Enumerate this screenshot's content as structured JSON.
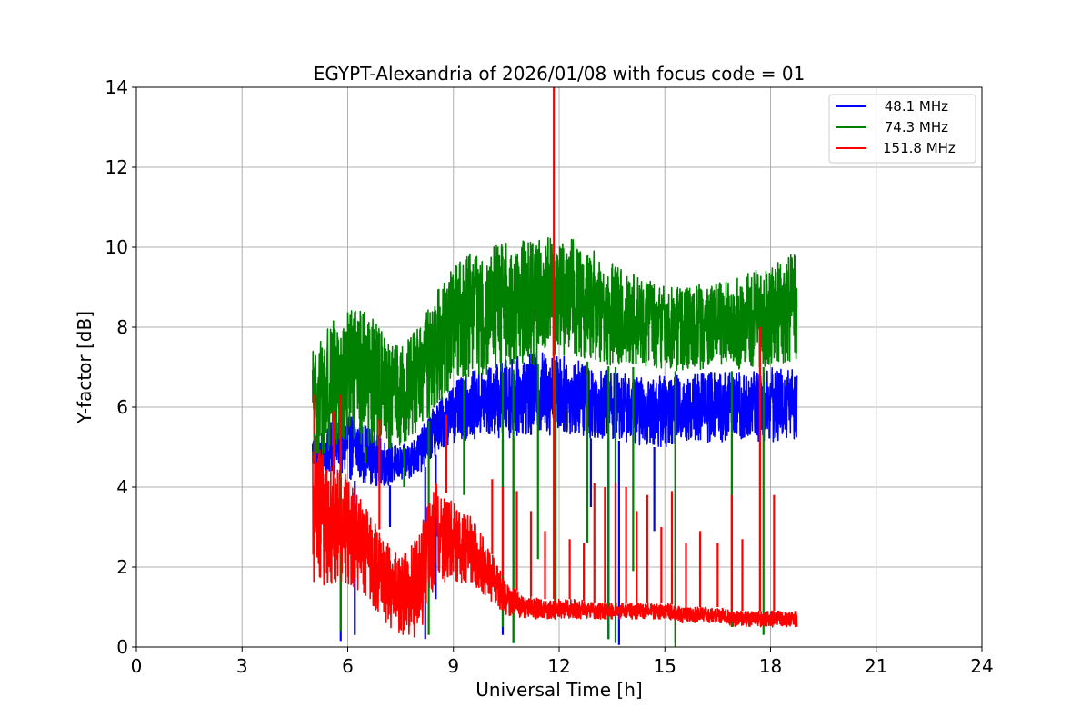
{
  "chart_data": {
    "type": "line",
    "title": "EGYPT-Alexandria of 2026/01/08 with focus code = 01",
    "xlabel": "Universal Time [h]",
    "ylabel": "Y-factor [dB]",
    "xlim": [
      0,
      24
    ],
    "ylim": [
      0,
      14
    ],
    "xticks": [
      0,
      3,
      6,
      9,
      12,
      15,
      18,
      21,
      24
    ],
    "yticks": [
      0,
      2,
      4,
      6,
      8,
      10,
      12,
      14
    ],
    "grid": true,
    "legend_position": "top-right",
    "series": [
      {
        "name": " 48.1 MHz",
        "color": "#0000ff",
        "envelope": [
          {
            "x": 5.0,
            "low": 4.4,
            "high": 5.3
          },
          {
            "x": 5.5,
            "low": 4.3,
            "high": 5.6
          },
          {
            "x": 6.0,
            "low": 4.2,
            "high": 5.9
          },
          {
            "x": 6.5,
            "low": 4.1,
            "high": 5.6
          },
          {
            "x": 7.0,
            "low": 4.0,
            "high": 5.2
          },
          {
            "x": 7.5,
            "low": 4.1,
            "high": 5.0
          },
          {
            "x": 8.0,
            "low": 4.3,
            "high": 5.3
          },
          {
            "x": 8.5,
            "low": 4.8,
            "high": 6.1
          },
          {
            "x": 9.0,
            "low": 5.1,
            "high": 6.6
          },
          {
            "x": 9.5,
            "low": 5.2,
            "high": 6.9
          },
          {
            "x": 10.0,
            "low": 5.2,
            "high": 7.0
          },
          {
            "x": 10.5,
            "low": 5.2,
            "high": 7.2
          },
          {
            "x": 11.0,
            "low": 5.3,
            "high": 7.3
          },
          {
            "x": 11.5,
            "low": 5.3,
            "high": 7.4
          },
          {
            "x": 12.0,
            "low": 5.3,
            "high": 7.3
          },
          {
            "x": 12.5,
            "low": 5.3,
            "high": 7.2
          },
          {
            "x": 13.0,
            "low": 5.2,
            "high": 7.0
          },
          {
            "x": 13.5,
            "low": 5.2,
            "high": 6.9
          },
          {
            "x": 14.0,
            "low": 5.1,
            "high": 6.8
          },
          {
            "x": 14.5,
            "low": 5.0,
            "high": 6.7
          },
          {
            "x": 15.0,
            "low": 5.0,
            "high": 6.8
          },
          {
            "x": 15.5,
            "low": 5.1,
            "high": 6.8
          },
          {
            "x": 16.0,
            "low": 5.1,
            "high": 6.9
          },
          {
            "x": 16.5,
            "low": 5.1,
            "high": 6.9
          },
          {
            "x": 17.0,
            "low": 5.1,
            "high": 6.9
          },
          {
            "x": 17.5,
            "low": 5.1,
            "high": 6.9
          },
          {
            "x": 18.0,
            "low": 5.1,
            "high": 7.0
          },
          {
            "x": 18.5,
            "low": 5.2,
            "high": 7.0
          },
          {
            "x": 18.75,
            "low": 5.2,
            "high": 7.0
          }
        ],
        "spikes": [
          {
            "x": 5.8,
            "y": 0.15
          },
          {
            "x": 6.2,
            "y": 0.3
          },
          {
            "x": 7.2,
            "y": 3.0
          },
          {
            "x": 8.2,
            "y": 0.2
          },
          {
            "x": 8.5,
            "y": 1.2
          },
          {
            "x": 10.4,
            "y": 0.3
          },
          {
            "x": 10.7,
            "y": 0.1
          },
          {
            "x": 11.2,
            "y": 7.3
          },
          {
            "x": 12.9,
            "y": 3.5
          },
          {
            "x": 13.4,
            "y": 0.2
          },
          {
            "x": 13.7,
            "y": 0.05
          },
          {
            "x": 14.7,
            "y": 2.9
          },
          {
            "x": 15.3,
            "y": 0.1
          }
        ]
      },
      {
        "name": " 74.3 MHz",
        "color": "#008000",
        "envelope": [
          {
            "x": 5.0,
            "low": 4.6,
            "high": 7.5
          },
          {
            "x": 5.5,
            "low": 4.9,
            "high": 8.1
          },
          {
            "x": 6.0,
            "low": 5.0,
            "high": 8.4
          },
          {
            "x": 6.5,
            "low": 5.0,
            "high": 8.5
          },
          {
            "x": 7.0,
            "low": 4.9,
            "high": 7.9
          },
          {
            "x": 7.5,
            "low": 4.9,
            "high": 7.5
          },
          {
            "x": 8.0,
            "low": 5.3,
            "high": 8.0
          },
          {
            "x": 8.5,
            "low": 5.9,
            "high": 8.9
          },
          {
            "x": 9.0,
            "low": 6.5,
            "high": 9.5
          },
          {
            "x": 9.5,
            "low": 6.8,
            "high": 9.9
          },
          {
            "x": 10.0,
            "low": 6.8,
            "high": 10.0
          },
          {
            "x": 10.5,
            "low": 6.9,
            "high": 10.1
          },
          {
            "x": 11.0,
            "low": 7.0,
            "high": 10.2
          },
          {
            "x": 11.5,
            "low": 7.1,
            "high": 10.2
          },
          {
            "x": 12.0,
            "low": 7.2,
            "high": 10.3
          },
          {
            "x": 12.5,
            "low": 7.2,
            "high": 10.2
          },
          {
            "x": 13.0,
            "low": 7.1,
            "high": 9.9
          },
          {
            "x": 13.5,
            "low": 7.0,
            "high": 9.6
          },
          {
            "x": 14.0,
            "low": 7.0,
            "high": 9.4
          },
          {
            "x": 14.5,
            "low": 7.0,
            "high": 9.2
          },
          {
            "x": 15.0,
            "low": 6.9,
            "high": 9.1
          },
          {
            "x": 15.5,
            "low": 6.9,
            "high": 9.0
          },
          {
            "x": 16.0,
            "low": 6.9,
            "high": 9.1
          },
          {
            "x": 16.5,
            "low": 6.9,
            "high": 9.1
          },
          {
            "x": 17.0,
            "low": 6.9,
            "high": 9.2
          },
          {
            "x": 17.5,
            "low": 7.0,
            "high": 9.4
          },
          {
            "x": 18.0,
            "low": 7.0,
            "high": 9.5
          },
          {
            "x": 18.5,
            "low": 7.1,
            "high": 9.8
          },
          {
            "x": 18.75,
            "low": 7.2,
            "high": 9.9
          }
        ],
        "spikes": [
          {
            "x": 5.05,
            "y": 6.3
          },
          {
            "x": 5.8,
            "y": 0.4
          },
          {
            "x": 6.5,
            "y": 4.6
          },
          {
            "x": 7.6,
            "y": 4.0
          },
          {
            "x": 8.3,
            "y": 0.3
          },
          {
            "x": 9.3,
            "y": 3.8
          },
          {
            "x": 10.4,
            "y": 0.5
          },
          {
            "x": 10.7,
            "y": 0.1
          },
          {
            "x": 11.4,
            "y": 2.2
          },
          {
            "x": 11.9,
            "y": 1.0
          },
          {
            "x": 12.8,
            "y": 2.6
          },
          {
            "x": 13.4,
            "y": 0.2
          },
          {
            "x": 13.6,
            "y": 0.1
          },
          {
            "x": 14.1,
            "y": 1.9
          },
          {
            "x": 15.3,
            "y": 0.0
          },
          {
            "x": 16.9,
            "y": 0.5
          },
          {
            "x": 17.8,
            "y": 0.3
          }
        ]
      },
      {
        "name": "151.8 MHz",
        "color": "#ff0000",
        "envelope": [
          {
            "x": 5.0,
            "low": 1.6,
            "high": 5.4
          },
          {
            "x": 5.5,
            "low": 1.5,
            "high": 4.6
          },
          {
            "x": 6.0,
            "low": 1.6,
            "high": 4.3
          },
          {
            "x": 6.5,
            "low": 1.2,
            "high": 3.5
          },
          {
            "x": 7.0,
            "low": 0.6,
            "high": 2.8
          },
          {
            "x": 7.5,
            "low": 0.3,
            "high": 2.2
          },
          {
            "x": 8.0,
            "low": 0.2,
            "high": 2.8
          },
          {
            "x": 8.5,
            "low": 1.6,
            "high": 4.2
          },
          {
            "x": 9.0,
            "low": 1.6,
            "high": 3.6
          },
          {
            "x": 9.5,
            "low": 1.6,
            "high": 3.3
          },
          {
            "x": 10.0,
            "low": 1.2,
            "high": 2.5
          },
          {
            "x": 10.5,
            "low": 0.8,
            "high": 1.6
          },
          {
            "x": 11.0,
            "low": 0.7,
            "high": 1.3
          },
          {
            "x": 11.5,
            "low": 0.7,
            "high": 1.2
          },
          {
            "x": 12.0,
            "low": 0.7,
            "high": 1.2
          },
          {
            "x": 12.5,
            "low": 0.7,
            "high": 1.2
          },
          {
            "x": 13.0,
            "low": 0.7,
            "high": 1.1
          },
          {
            "x": 13.5,
            "low": 0.7,
            "high": 1.1
          },
          {
            "x": 14.0,
            "low": 0.7,
            "high": 1.1
          },
          {
            "x": 14.5,
            "low": 0.7,
            "high": 1.1
          },
          {
            "x": 15.0,
            "low": 0.7,
            "high": 1.1
          },
          {
            "x": 15.5,
            "low": 0.6,
            "high": 1.0
          },
          {
            "x": 16.0,
            "low": 0.6,
            "high": 1.0
          },
          {
            "x": 16.5,
            "low": 0.6,
            "high": 1.0
          },
          {
            "x": 17.0,
            "low": 0.5,
            "high": 0.9
          },
          {
            "x": 17.5,
            "low": 0.5,
            "high": 0.9
          },
          {
            "x": 18.0,
            "low": 0.5,
            "high": 0.9
          },
          {
            "x": 18.5,
            "low": 0.5,
            "high": 0.9
          },
          {
            "x": 18.75,
            "low": 0.5,
            "high": 0.9
          }
        ],
        "spikes": [
          {
            "x": 5.05,
            "y": 6.3
          },
          {
            "x": 5.6,
            "y": 5.9
          },
          {
            "x": 5.8,
            "y": 6.3
          },
          {
            "x": 6.9,
            "y": 5.7
          },
          {
            "x": 8.8,
            "y": 5.8
          },
          {
            "x": 10.1,
            "y": 4.2
          },
          {
            "x": 10.4,
            "y": 4.0
          },
          {
            "x": 10.8,
            "y": 3.9
          },
          {
            "x": 11.2,
            "y": 3.4
          },
          {
            "x": 11.6,
            "y": 2.9
          },
          {
            "x": 11.85,
            "y": 14.0
          },
          {
            "x": 12.3,
            "y": 2.7
          },
          {
            "x": 12.7,
            "y": 2.6
          },
          {
            "x": 13.0,
            "y": 4.1
          },
          {
            "x": 13.3,
            "y": 4.0
          },
          {
            "x": 13.6,
            "y": 4.1
          },
          {
            "x": 13.9,
            "y": 4.0
          },
          {
            "x": 14.2,
            "y": 3.4
          },
          {
            "x": 14.5,
            "y": 3.8
          },
          {
            "x": 14.9,
            "y": 3.0
          },
          {
            "x": 15.2,
            "y": 3.9
          },
          {
            "x": 15.6,
            "y": 2.6
          },
          {
            "x": 16.0,
            "y": 2.9
          },
          {
            "x": 16.5,
            "y": 2.6
          },
          {
            "x": 16.9,
            "y": 3.8
          },
          {
            "x": 17.2,
            "y": 2.7
          },
          {
            "x": 17.7,
            "y": 8.0
          },
          {
            "x": 18.1,
            "y": 3.8
          }
        ]
      }
    ]
  }
}
